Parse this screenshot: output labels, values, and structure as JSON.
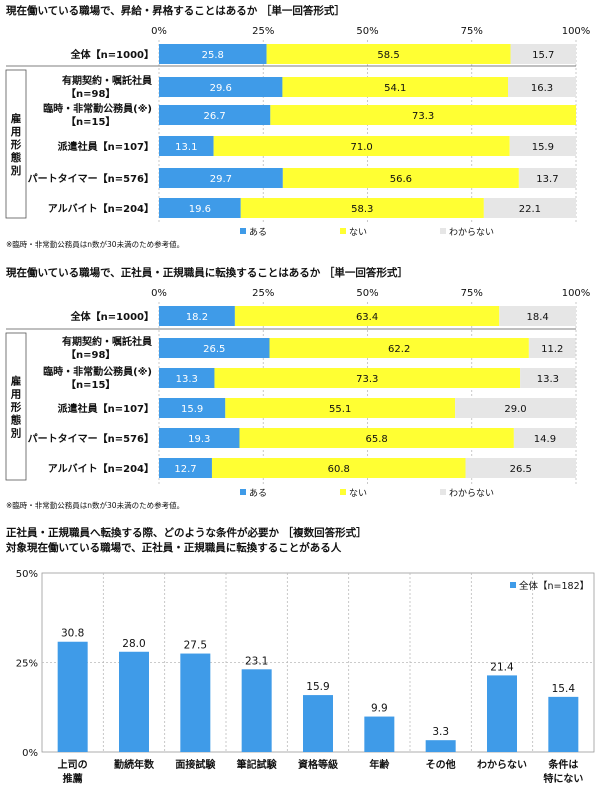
{
  "chart_data": [
    {
      "type": "bar",
      "orientation": "horizontal-stacked-100",
      "title": "現在働いている職場で、昇給・昇格することはあるか ［単一回答形式］",
      "x_ticks": [
        "0%",
        "25%",
        "50%",
        "75%",
        "100%"
      ],
      "group_label": "雇用形態別",
      "categories": [
        [
          "全体【n=1000】"
        ],
        [
          "有期契約・嘱託社員",
          "【n=98】"
        ],
        [
          "臨時・非常勤公務員(※)",
          "【n=15】"
        ],
        [
          "派遣社員【n=107】"
        ],
        [
          "パートタイマー【n=576】"
        ],
        [
          "アルバイト【n=204】"
        ]
      ],
      "series": [
        {
          "name": "ある",
          "color": "#3f9be8",
          "values": [
            25.8,
            29.6,
            26.7,
            13.1,
            29.7,
            19.6
          ]
        },
        {
          "name": "ない",
          "color": "#ffff33",
          "values": [
            58.5,
            54.1,
            73.3,
            71.0,
            56.6,
            58.3
          ]
        },
        {
          "name": "わからない",
          "color": "#e6e6e6",
          "values": [
            15.7,
            16.3,
            0,
            15.9,
            13.7,
            22.1
          ]
        }
      ],
      "note": "※臨時・非常勤公務員はn数が30未満のため参考値。"
    },
    {
      "type": "bar",
      "orientation": "horizontal-stacked-100",
      "title": "現在働いている職場で、正社員・正規職員に転換することはあるか ［単一回答形式］",
      "x_ticks": [
        "0%",
        "25%",
        "50%",
        "75%",
        "100%"
      ],
      "group_label": "雇用形態別",
      "categories": [
        [
          "全体【n=1000】"
        ],
        [
          "有期契約・嘱託社員",
          "【n=98】"
        ],
        [
          "臨時・非常勤公務員(※)",
          "【n=15】"
        ],
        [
          "派遣社員【n=107】"
        ],
        [
          "パートタイマー【n=576】"
        ],
        [
          "アルバイト【n=204】"
        ]
      ],
      "series": [
        {
          "name": "ある",
          "color": "#3f9be8",
          "values": [
            18.2,
            26.5,
            13.3,
            15.9,
            19.3,
            12.7
          ]
        },
        {
          "name": "ない",
          "color": "#ffff33",
          "values": [
            63.4,
            62.2,
            73.3,
            55.1,
            65.8,
            60.8
          ]
        },
        {
          "name": "わからない",
          "color": "#e6e6e6",
          "values": [
            18.4,
            11.2,
            13.3,
            29.0,
            14.9,
            26.5
          ]
        }
      ],
      "note": "※臨時・非常勤公務員はn数が30未満のため参考値。"
    },
    {
      "type": "bar",
      "orientation": "vertical",
      "title": "正社員・正規職員へ転換する際、どのような条件が必要か ［複数回答形式］",
      "subtitle": "対象現在働いている職場で、正社員・正規職員に転換することがある人",
      "y_ticks": [
        "50%",
        "25%",
        "0%"
      ],
      "ylim": [
        0,
        50
      ],
      "categories": [
        [
          "上司の",
          "推薦"
        ],
        [
          "勤続年数"
        ],
        [
          "面接試験"
        ],
        [
          "筆記試験"
        ],
        [
          "資格等級"
        ],
        [
          "年齢"
        ],
        [
          "その他"
        ],
        [
          "わからない"
        ],
        [
          "条件は",
          "特にない"
        ]
      ],
      "series": [
        {
          "name": "全体【n=182】",
          "color": "#3f9be8",
          "values": [
            30.8,
            28.0,
            27.5,
            23.1,
            15.9,
            9.9,
            3.3,
            21.4,
            15.4
          ]
        }
      ]
    }
  ]
}
